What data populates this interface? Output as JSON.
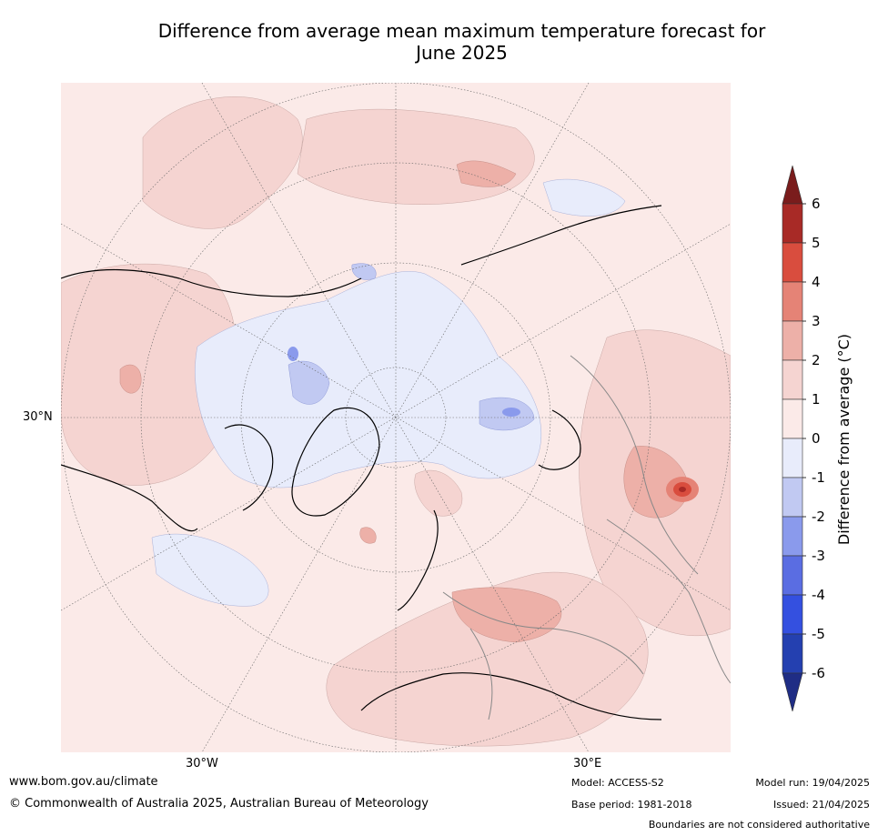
{
  "title_line1": "Difference from average mean maximum temperature forecast for",
  "title_line2": "June 2025",
  "labels": {
    "lat_30n": "30°N",
    "lon_30w": "30°W",
    "lon_30e": "30°E"
  },
  "colorbar": {
    "title": "Difference from average (°C)",
    "ticks": [
      "6",
      "5",
      "4",
      "3",
      "2",
      "1",
      "0",
      "-1",
      "-2",
      "-3",
      "-4",
      "-5",
      "-6"
    ],
    "colors": [
      "#7a1c1c",
      "#a82a26",
      "#d94d3e",
      "#e58376",
      "#edb0a8",
      "#f5d4d1",
      "#fbeae8",
      "#e8ecfb",
      "#c1c9f2",
      "#8a9aec",
      "#5a6de2",
      "#3450e0",
      "#2440b0",
      "#1f2d85"
    ]
  },
  "footer": {
    "website": "www.bom.gov.au/climate",
    "copyright": "© Commonwealth of Australia 2025, Australian Bureau of Meteorology",
    "model": "Model: ACCESS-S2",
    "base_period": "Base period: 1981-2018",
    "model_run": "Model run: 19/04/2025",
    "issued": "Issued: 21/04/2025",
    "disclaimer": "Boundaries are not considered authoritative"
  }
}
